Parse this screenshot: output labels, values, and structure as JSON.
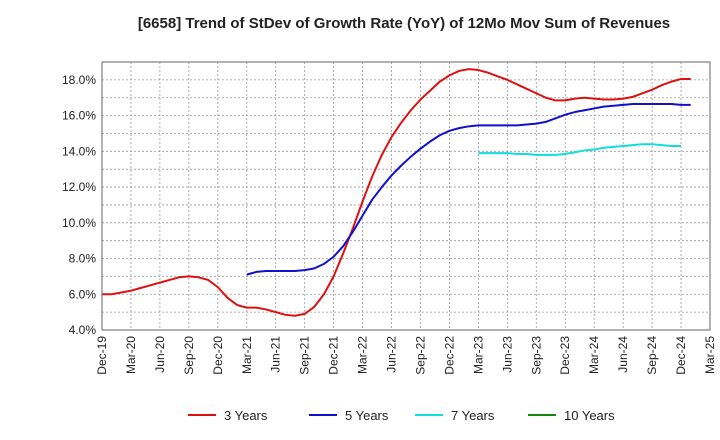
{
  "chart_data": {
    "type": "line",
    "title": "[6658]  Trend of StDev of Growth Rate (YoY) of 12Mo Mov Sum of Revenues",
    "xlabel": "",
    "ylabel": "",
    "ylim": [
      4.0,
      19.0
    ],
    "yticks": [
      "4.0%",
      "6.0%",
      "8.0%",
      "10.0%",
      "12.0%",
      "14.0%",
      "16.0%",
      "18.0%"
    ],
    "ytick_values": [
      4,
      6,
      8,
      10,
      12,
      14,
      16,
      18
    ],
    "xticks": [
      "Dec-19",
      "Mar-20",
      "Jun-20",
      "Sep-20",
      "Dec-20",
      "Mar-21",
      "Jun-21",
      "Sep-21",
      "Dec-21",
      "Mar-22",
      "Jun-22",
      "Sep-22",
      "Dec-22",
      "Mar-23",
      "Jun-23",
      "Sep-23",
      "Dec-23",
      "Mar-24",
      "Jun-24",
      "Sep-24",
      "Dec-24",
      "Mar-25"
    ],
    "x_index_range": [
      0,
      63
    ],
    "grid": true,
    "legend_position": "bottom",
    "series": [
      {
        "name": "3 Years",
        "color": "#dd1111",
        "start_index": 0,
        "values": [
          6.0,
          6.0,
          6.1,
          6.2,
          6.35,
          6.5,
          6.65,
          6.8,
          6.95,
          7.0,
          6.95,
          6.8,
          6.4,
          5.8,
          5.4,
          5.25,
          5.25,
          5.15,
          5.0,
          4.85,
          4.8,
          4.9,
          5.3,
          6.0,
          7.0,
          8.3,
          9.7,
          11.2,
          12.6,
          13.8,
          14.8,
          15.6,
          16.3,
          16.9,
          17.4,
          17.9,
          18.25,
          18.5,
          18.6,
          18.55,
          18.4,
          18.2,
          18.0,
          17.75,
          17.5,
          17.25,
          17.0,
          16.85,
          16.85,
          16.95,
          17.0,
          16.95,
          16.9,
          16.9,
          16.95,
          17.05,
          17.25,
          17.45,
          17.7,
          17.9,
          18.05,
          18.05
        ]
      },
      {
        "name": "5 Years",
        "color": "#1111cc",
        "start_index": 15,
        "values": [
          7.1,
          7.25,
          7.3,
          7.3,
          7.3,
          7.3,
          7.35,
          7.45,
          7.7,
          8.1,
          8.7,
          9.5,
          10.4,
          11.3,
          12.0,
          12.65,
          13.2,
          13.7,
          14.15,
          14.55,
          14.9,
          15.15,
          15.3,
          15.4,
          15.45,
          15.45,
          15.45,
          15.45,
          15.45,
          15.5,
          15.55,
          15.65,
          15.85,
          16.05,
          16.2,
          16.3,
          16.4,
          16.5,
          16.55,
          16.6,
          16.65,
          16.65,
          16.65,
          16.65,
          16.65,
          16.6,
          16.6
        ]
      },
      {
        "name": "7 Years",
        "color": "#11dddd",
        "start_index": 39,
        "values": [
          13.9,
          13.9,
          13.9,
          13.9,
          13.85,
          13.85,
          13.8,
          13.8,
          13.8,
          13.85,
          13.95,
          14.05,
          14.1,
          14.2,
          14.25,
          14.3,
          14.35,
          14.4,
          14.4,
          14.35,
          14.3,
          14.3
        ]
      },
      {
        "name": "10 Years",
        "color": "#118811",
        "start_index": 0,
        "values": []
      }
    ]
  }
}
